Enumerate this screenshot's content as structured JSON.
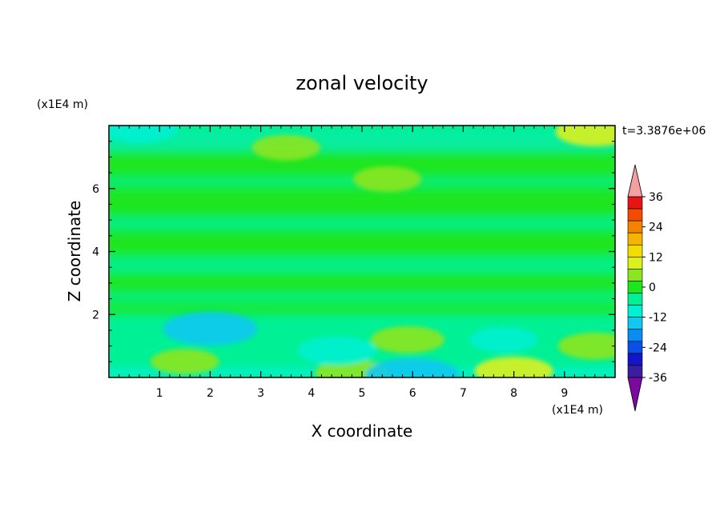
{
  "chart_data": {
    "type": "heatmap",
    "title": "zonal velocity",
    "xlabel": "X coordinate",
    "ylabel": "Z coordinate",
    "x_scale_label": "(x1E4 m)",
    "y_scale_label": "(x1E4 m)",
    "time_label": "t=3.3876e+06",
    "xlim": [
      0,
      10
    ],
    "ylim": [
      0,
      8
    ],
    "x_ticks": [
      1,
      2,
      3,
      4,
      5,
      6,
      7,
      8,
      9
    ],
    "y_ticks": [
      2,
      4,
      6
    ],
    "colorbar": {
      "levels": [
        -42,
        -36,
        -30,
        -24,
        -18,
        -12,
        -6,
        0,
        6,
        12,
        18,
        24,
        30,
        36,
        42
      ],
      "labels": [
        36,
        24,
        12,
        0,
        -12,
        -24,
        -36
      ],
      "colors": [
        "#7a0aa0",
        "#3a1ea0",
        "#1414c8",
        "#0a50e6",
        "#0a8cf0",
        "#10c8f0",
        "#00f0d2",
        "#00f096",
        "#1ee61e",
        "#8ce61e",
        "#dcf01e",
        "#f5dc00",
        "#f5b400",
        "#f58200",
        "#f54b00",
        "#e61414",
        "#f5a0a0"
      ],
      "extend": "both"
    },
    "features": [
      {
        "x": 2.0,
        "z": 1.55,
        "value": -18
      },
      {
        "x": 5.9,
        "z": 1.2,
        "value": 10
      },
      {
        "x": 1.5,
        "z": 0.5,
        "value": 8
      },
      {
        "x": 8.0,
        "z": 0.2,
        "value": 12
      },
      {
        "x": 9.6,
        "z": 1.0,
        "value": 10
      },
      {
        "x": 4.8,
        "z": 0.15,
        "value": 10
      },
      {
        "x": 4.5,
        "z": 0.85,
        "value": -12
      },
      {
        "x": 7.8,
        "z": 1.2,
        "value": -8
      },
      {
        "x": 6.0,
        "z": 0.08,
        "value": -18
      },
      {
        "x": 5.5,
        "z": 6.3,
        "value": 8
      },
      {
        "x": 3.5,
        "z": 7.3,
        "value": 8
      },
      {
        "x": 9.6,
        "z": 7.8,
        "value": 12
      },
      {
        "x": 0.6,
        "z": 7.9,
        "value": -12
      }
    ]
  }
}
